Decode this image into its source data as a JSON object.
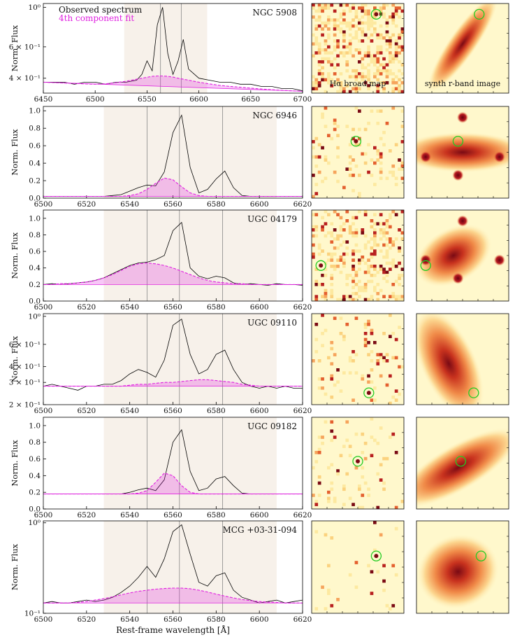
{
  "chart_data": [
    {
      "type": "line",
      "title": "NGC 5908",
      "ylabel": "Norm. Flux",
      "log_y": true,
      "xlim": [
        6450,
        6700
      ],
      "xticks": [
        6450,
        6500,
        6550,
        6600,
        6650,
        6700
      ],
      "ylim": [
        0.33,
        1.05
      ],
      "yticks": [
        {
          "value": 1,
          "label": "10⁰"
        },
        {
          "value": 0.6,
          "label": "6 × 10⁻¹"
        },
        {
          "value": 0.4,
          "label": "4 × 10⁻¹"
        }
      ],
      "span": [
        6528,
        6608
      ],
      "vlines": [
        6563,
        6583
      ],
      "x": [
        6450,
        6460,
        6470,
        6480,
        6490,
        6500,
        6510,
        6520,
        6530,
        6540,
        6545,
        6550,
        6555,
        6560,
        6565,
        6570,
        6575,
        6580,
        6585,
        6590,
        6600,
        6610,
        6620,
        6630,
        6640,
        6650,
        6660,
        6670,
        6680,
        6690,
        6700
      ],
      "series": [
        {
          "name": "Observed spectrum",
          "color": "#000000",
          "values": [
            0.38,
            0.38,
            0.38,
            0.37,
            0.38,
            0.38,
            0.37,
            0.38,
            0.38,
            0.39,
            0.42,
            0.5,
            0.44,
            0.8,
            1.0,
            0.55,
            0.42,
            0.5,
            0.66,
            0.45,
            0.4,
            0.39,
            0.38,
            0.38,
            0.37,
            0.37,
            0.36,
            0.36,
            0.35,
            0.35,
            0.34
          ]
        },
        {
          "name": "4th component fit",
          "color": "#e020e0",
          "values": [
            0.38,
            0.378,
            0.376,
            0.374,
            0.372,
            0.37,
            0.372,
            0.378,
            0.385,
            0.395,
            0.4,
            0.405,
            0.41,
            0.412,
            0.412,
            0.41,
            0.406,
            0.4,
            0.395,
            0.39,
            0.38,
            0.372,
            0.365,
            0.36,
            0.356,
            0.352,
            0.348,
            0.345,
            0.342,
            0.34,
            0.338
          ]
        }
      ]
    },
    {
      "type": "line",
      "title": "NGC 6946",
      "ylabel": "Norm. Flux",
      "log_y": false,
      "xlim": [
        6500,
        6620
      ],
      "xticks": [
        6500,
        6520,
        6540,
        6560,
        6580,
        6600,
        6620
      ],
      "ylim": [
        0,
        1.05
      ],
      "yticks": [
        {
          "value": 0,
          "label": "0.0"
        },
        0.2,
        0.4,
        0.6,
        0.8,
        {
          "value": 1,
          "label": "1.0"
        }
      ],
      "span": [
        6528,
        6608
      ],
      "vlines": [
        6548,
        6563,
        6583
      ],
      "x": [
        6500,
        6504,
        6508,
        6512,
        6516,
        6520,
        6524,
        6528,
        6532,
        6536,
        6540,
        6544,
        6548,
        6552,
        6556,
        6560,
        6564,
        6568,
        6572,
        6576,
        6580,
        6584,
        6588,
        6592,
        6596,
        6600,
        6604,
        6608,
        6612,
        6616,
        6620
      ],
      "series": [
        {
          "color": "#000000",
          "values": [
            0.02,
            0.02,
            0.02,
            0.02,
            0.02,
            0.02,
            0.02,
            0.02,
            0.03,
            0.04,
            0.08,
            0.12,
            0.15,
            0.14,
            0.3,
            0.75,
            0.95,
            0.35,
            0.06,
            0.1,
            0.22,
            0.31,
            0.12,
            0.03,
            0.02,
            0.02,
            0.02,
            0.02,
            0.02,
            0.02,
            0.02
          ]
        },
        {
          "color": "#e020e0",
          "values": [
            0.02,
            0.02,
            0.02,
            0.02,
            0.02,
            0.02,
            0.02,
            0.02,
            0.02,
            0.02,
            0.03,
            0.05,
            0.1,
            0.17,
            0.23,
            0.21,
            0.13,
            0.06,
            0.03,
            0.02,
            0.02,
            0.02,
            0.02,
            0.02,
            0.02,
            0.02,
            0.02,
            0.02,
            0.02,
            0.02,
            0.02
          ]
        }
      ]
    },
    {
      "type": "line",
      "title": "UGC 04179",
      "ylabel": "Norm. Flux",
      "log_y": false,
      "xlim": [
        6500,
        6620
      ],
      "xticks": [
        6500,
        6520,
        6540,
        6560,
        6580,
        6600,
        6620
      ],
      "ylim": [
        0,
        1.1
      ],
      "yticks": [
        {
          "value": 0,
          "label": "0.0"
        },
        0.2,
        0.4,
        0.6,
        0.8,
        {
          "value": 1,
          "label": "1.0"
        }
      ],
      "span": [
        6528,
        6608
      ],
      "vlines": [
        6548,
        6563,
        6583
      ],
      "x": [
        6500,
        6504,
        6508,
        6512,
        6516,
        6520,
        6524,
        6528,
        6532,
        6536,
        6540,
        6544,
        6548,
        6552,
        6556,
        6560,
        6564,
        6568,
        6572,
        6576,
        6580,
        6584,
        6588,
        6592,
        6596,
        6600,
        6604,
        6608,
        6612,
        6616,
        6620
      ],
      "series": [
        {
          "color": "#000000",
          "values": [
            0.2,
            0.21,
            0.2,
            0.21,
            0.22,
            0.23,
            0.25,
            0.28,
            0.33,
            0.38,
            0.43,
            0.46,
            0.47,
            0.5,
            0.55,
            0.85,
            0.95,
            0.4,
            0.3,
            0.27,
            0.3,
            0.28,
            0.22,
            0.2,
            0.21,
            0.2,
            0.19,
            0.21,
            0.2,
            0.2,
            0.19
          ]
        },
        {
          "color": "#e020e0",
          "values": [
            0.2,
            0.2,
            0.21,
            0.21,
            0.22,
            0.23,
            0.25,
            0.28,
            0.32,
            0.37,
            0.42,
            0.45,
            0.46,
            0.45,
            0.43,
            0.4,
            0.36,
            0.32,
            0.28,
            0.25,
            0.23,
            0.22,
            0.21,
            0.21,
            0.2,
            0.2,
            0.2,
            0.2,
            0.2,
            0.2,
            0.2
          ]
        }
      ]
    },
    {
      "type": "line",
      "title": "UGC 09110",
      "ylabel": "Norm. Flux",
      "log_y": true,
      "xlim": [
        6500,
        6620
      ],
      "xticks": [
        6500,
        6520,
        6540,
        6560,
        6580,
        6600,
        6620
      ],
      "ylim": [
        0.2,
        1.05
      ],
      "yticks": [
        {
          "value": 1,
          "label": "10⁰"
        },
        {
          "value": 0.6,
          "label": "6 × 10⁻¹"
        },
        {
          "value": 0.4,
          "label": "4 × 10⁻¹"
        },
        {
          "value": 0.3,
          "label": "3 × 10⁻¹"
        },
        {
          "value": 0.2,
          "label": "2 × 10⁻¹"
        }
      ],
      "span": [
        6528,
        6608
      ],
      "vlines": [
        6548,
        6563,
        6583
      ],
      "x": [
        6500,
        6504,
        6508,
        6512,
        6516,
        6520,
        6524,
        6528,
        6532,
        6536,
        6540,
        6544,
        6548,
        6552,
        6556,
        6560,
        6564,
        6568,
        6572,
        6576,
        6580,
        6584,
        6588,
        6592,
        6596,
        6600,
        6604,
        6608,
        6612,
        6616,
        6620
      ],
      "series": [
        {
          "color": "#000000",
          "values": [
            0.28,
            0.29,
            0.28,
            0.27,
            0.26,
            0.28,
            0.28,
            0.29,
            0.29,
            0.31,
            0.35,
            0.38,
            0.36,
            0.33,
            0.45,
            0.85,
            0.95,
            0.5,
            0.35,
            0.38,
            0.5,
            0.54,
            0.38,
            0.3,
            0.28,
            0.27,
            0.28,
            0.27,
            0.28,
            0.27,
            0.27
          ]
        },
        {
          "color": "#e020e0",
          "values": [
            0.28,
            0.28,
            0.28,
            0.28,
            0.28,
            0.28,
            0.28,
            0.28,
            0.28,
            0.28,
            0.285,
            0.29,
            0.29,
            0.295,
            0.3,
            0.3,
            0.305,
            0.31,
            0.315,
            0.315,
            0.31,
            0.305,
            0.3,
            0.29,
            0.285,
            0.28,
            0.28,
            0.28,
            0.28,
            0.28,
            0.28
          ]
        }
      ]
    },
    {
      "type": "line",
      "title": "UGC 09182",
      "ylabel": "Norm. Flux",
      "log_y": false,
      "xlim": [
        6500,
        6620
      ],
      "xticks": [
        6500,
        6520,
        6540,
        6560,
        6580,
        6600,
        6620
      ],
      "ylim": [
        0,
        1.1
      ],
      "yticks": [
        {
          "value": 0,
          "label": "0.0"
        },
        0.2,
        0.4,
        0.6,
        0.8,
        {
          "value": 1,
          "label": "1.0"
        }
      ],
      "span": [
        6528,
        6608
      ],
      "vlines": [
        6548,
        6563,
        6583
      ],
      "x": [
        6500,
        6504,
        6508,
        6512,
        6516,
        6520,
        6524,
        6528,
        6532,
        6536,
        6540,
        6544,
        6548,
        6552,
        6556,
        6560,
        6564,
        6568,
        6572,
        6576,
        6580,
        6584,
        6588,
        6592,
        6596,
        6600,
        6604,
        6608,
        6612,
        6616,
        6620
      ],
      "series": [
        {
          "color": "#000000",
          "values": [
            0.18,
            0.18,
            0.18,
            0.18,
            0.18,
            0.18,
            0.18,
            0.18,
            0.18,
            0.18,
            0.2,
            0.23,
            0.25,
            0.22,
            0.35,
            0.8,
            0.95,
            0.45,
            0.22,
            0.25,
            0.36,
            0.39,
            0.28,
            0.19,
            0.18,
            0.18,
            0.18,
            0.18,
            0.18,
            0.18,
            0.18
          ]
        },
        {
          "color": "#e020e0",
          "values": [
            0.18,
            0.18,
            0.18,
            0.18,
            0.18,
            0.18,
            0.18,
            0.18,
            0.18,
            0.18,
            0.18,
            0.19,
            0.22,
            0.32,
            0.43,
            0.4,
            0.28,
            0.2,
            0.18,
            0.18,
            0.18,
            0.18,
            0.18,
            0.18,
            0.18,
            0.18,
            0.18,
            0.18,
            0.18,
            0.18,
            0.18
          ]
        }
      ]
    },
    {
      "type": "line",
      "title": "MCG +03-31-094",
      "ylabel": "Norm. Flux",
      "xlabel": "Rest-frame wavelength [Å]",
      "log_y": true,
      "xlim": [
        6500,
        6620
      ],
      "xticks": [
        6500,
        6520,
        6540,
        6560,
        6580,
        6600,
        6620
      ],
      "ylim": [
        0.1,
        1.05
      ],
      "yticks": [
        {
          "value": 1,
          "label": "10⁰"
        },
        {
          "value": 0.1,
          "label": "10⁻¹"
        }
      ],
      "span": [
        6528,
        6608
      ],
      "vlines": [
        6548,
        6563,
        6583
      ],
      "x": [
        6500,
        6504,
        6508,
        6512,
        6516,
        6520,
        6524,
        6528,
        6532,
        6536,
        6540,
        6544,
        6548,
        6552,
        6556,
        6560,
        6564,
        6568,
        6572,
        6576,
        6580,
        6584,
        6588,
        6592,
        6596,
        6600,
        6604,
        6608,
        6612,
        6616,
        6620
      ],
      "series": [
        {
          "color": "#000000",
          "values": [
            0.13,
            0.135,
            0.13,
            0.13,
            0.135,
            0.14,
            0.135,
            0.14,
            0.15,
            0.17,
            0.2,
            0.25,
            0.33,
            0.25,
            0.4,
            0.8,
            0.95,
            0.45,
            0.22,
            0.2,
            0.26,
            0.28,
            0.18,
            0.15,
            0.14,
            0.13,
            0.135,
            0.14,
            0.13,
            0.135,
            0.14
          ]
        },
        {
          "color": "#e020e0",
          "values": [
            0.13,
            0.13,
            0.13,
            0.13,
            0.132,
            0.135,
            0.14,
            0.145,
            0.152,
            0.16,
            0.168,
            0.175,
            0.18,
            0.185,
            0.188,
            0.19,
            0.19,
            0.187,
            0.18,
            0.172,
            0.163,
            0.155,
            0.148,
            0.142,
            0.138,
            0.135,
            0.133,
            0.132,
            0.13,
            0.13,
            0.13
          ]
        }
      ]
    }
  ],
  "image_labels": {
    "halpha": "Hα broad map",
    "rband": "synth r-band image"
  }
}
